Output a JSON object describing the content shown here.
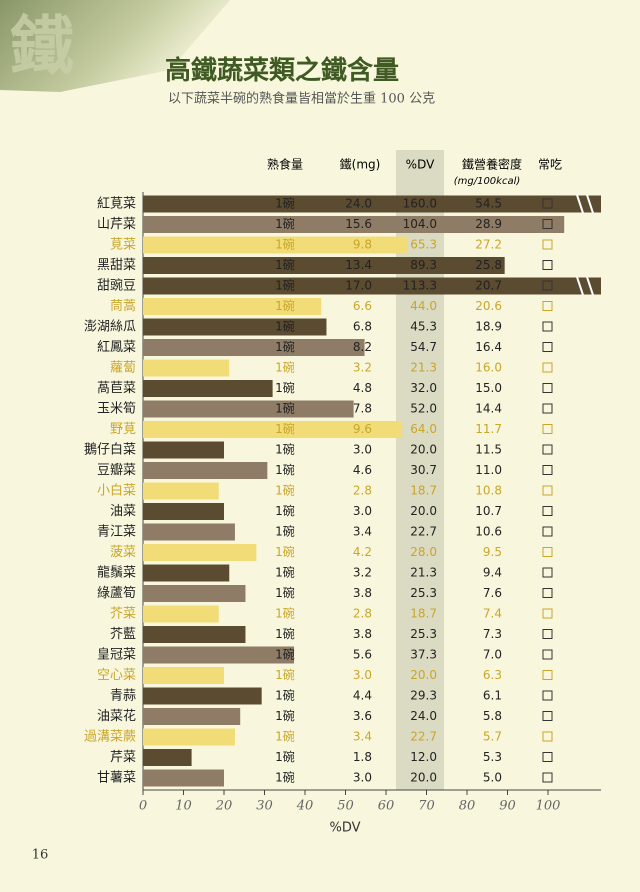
{
  "header": {
    "emblem": "鐵",
    "title": "高鐵蔬菜類之鐵含量",
    "subtitle": "以下蔬菜半碗的熟食量皆相當於生重 100 公克"
  },
  "columns": {
    "serving": "熟食量",
    "iron": "鐵(mg)",
    "dv": "%DV",
    "density": "鐵營養密度",
    "density_unit": "(mg/100kcal)",
    "often": "常吃"
  },
  "page_number": "16",
  "chart_data": {
    "type": "bar",
    "orientation": "horizontal",
    "x_label": "%DV",
    "categories": [
      "紅莧菜",
      "山芹菜",
      "莧菜",
      "黑甜菜",
      "甜豌豆",
      "茼蒿",
      "澎湖絲瓜",
      "紅鳳菜",
      "蘿蔔",
      "萵苣菜",
      "玉米筍",
      "野莧",
      "鵝仔白菜",
      "豆瓣菜",
      "小白菜",
      "油菜",
      "青江菜",
      "菠菜",
      "龍鬚菜",
      "綠蘆筍",
      "芥菜",
      "芥藍",
      "皇冠菜",
      "空心菜",
      "青蒜",
      "油菜花",
      "過溝菜蕨",
      "芹菜",
      "甘薯菜"
    ],
    "values": [
      160.0,
      104.0,
      65.3,
      89.3,
      113.3,
      44.0,
      45.3,
      54.7,
      21.3,
      32.0,
      52.0,
      64.0,
      20.0,
      30.7,
      18.7,
      20.0,
      22.7,
      28.0,
      21.3,
      25.3,
      18.7,
      25.3,
      37.3,
      20.0,
      29.3,
      24.0,
      22.7,
      12.0,
      20.0
    ],
    "value_labels": [
      "160.0",
      "104.0",
      "65.3",
      "89.3",
      "113.3",
      "44.0",
      "45.3",
      "54.7",
      "21.3",
      "32.0",
      "52.0",
      "64.0",
      "20.0",
      "30.7",
      "18.7",
      "20.0",
      "22.7",
      "28.0",
      "21.3",
      "25.3",
      "18.7",
      "25.3",
      "37.3",
      "20.0",
      "29.3",
      "24.0",
      "22.7",
      "12.0",
      "20.0"
    ],
    "serving": [
      "1碗",
      "1碗",
      "1碗",
      "1碗",
      "1碗",
      "1碗",
      "1碗",
      "1碗",
      "1碗",
      "1碗",
      "1碗",
      "1碗",
      "1碗",
      "1碗",
      "1碗",
      "1碗",
      "1碗",
      "1碗",
      "1碗",
      "1碗",
      "1碗",
      "1碗",
      "1碗",
      "1碗",
      "1碗",
      "1碗",
      "1碗",
      "1碗",
      "1碗"
    ],
    "iron_mg": [
      "24.0",
      "15.6",
      "9.8",
      "13.4",
      "17.0",
      "6.6",
      "6.8",
      "8.2",
      "3.2",
      "4.8",
      "7.8",
      "9.6",
      "3.0",
      "4.6",
      "2.8",
      "3.0",
      "3.4",
      "4.2",
      "3.2",
      "3.8",
      "2.8",
      "3.8",
      "5.6",
      "3.0",
      "4.4",
      "3.6",
      "3.4",
      "1.8",
      "3.0"
    ],
    "iron_density": [
      "54.5",
      "28.9",
      "27.2",
      "25.8",
      "20.7",
      "20.6",
      "18.9",
      "16.4",
      "16.0",
      "15.0",
      "14.4",
      "11.7",
      "11.5",
      "11.0",
      "10.8",
      "10.7",
      "10.6",
      "9.5",
      "9.4",
      "7.6",
      "7.4",
      "7.3",
      "7.0",
      "6.3",
      "6.1",
      "5.8",
      "5.7",
      "5.3",
      "5.0"
    ],
    "colors": [
      "#5b4b30",
      "#8f7c66",
      "#f1dc78",
      "#5b4b30",
      "#5b4b30",
      "#f1dc78",
      "#5b4b30",
      "#8f7c66",
      "#f1dc78",
      "#5b4b30",
      "#8f7c66",
      "#f1dc78",
      "#5b4b30",
      "#8f7c66",
      "#f1dc78",
      "#5b4b30",
      "#8f7c66",
      "#f1dc78",
      "#5b4b30",
      "#8f7c66",
      "#f1dc78",
      "#5b4b30",
      "#8f7c66",
      "#f1dc78",
      "#5b4b30",
      "#8f7c66",
      "#f1dc78",
      "#5b4b30",
      "#8f7c66"
    ],
    "xlim": [
      0,
      100
    ],
    "xticks": [
      0,
      10,
      20,
      30,
      40,
      50,
      60,
      70,
      80,
      90,
      100
    ]
  }
}
